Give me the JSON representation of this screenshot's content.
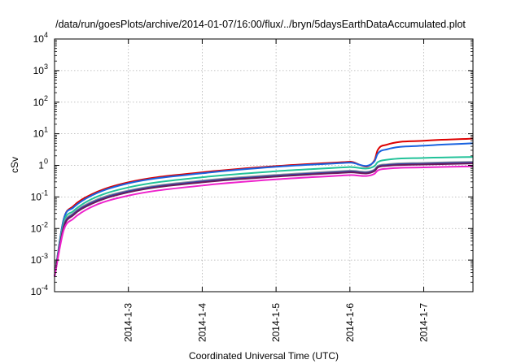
{
  "chart_data": {
    "type": "line",
    "title": "/data/run/goesPlots/archive/2014-01-07/16:00/flux/../bryn/5daysEarthDataAccumulated.plot",
    "xlabel": "Coordinated Universal Time (UTC)",
    "ylabel": "cSv",
    "yscale": "log",
    "ylim": [
      0.0001,
      10000
    ],
    "xlim": [
      "2014-01-02 00:00",
      "2014-01-07 16:00"
    ],
    "grid": true,
    "x_tick_labels": [
      "2014-1-3",
      "2014-1-4",
      "2014-1-5",
      "2014-1-6",
      "2014-1-7"
    ],
    "y_tick_labels": [
      {
        "base": "10",
        "exp": "-4"
      },
      {
        "base": "10",
        "exp": "-3"
      },
      {
        "base": "10",
        "exp": "-2"
      },
      {
        "base": "10",
        "exp": "-1"
      },
      {
        "base": "1",
        "exp": "0"
      },
      {
        "base": "10",
        "exp": "1"
      },
      {
        "base": "10",
        "exp": "2"
      },
      {
        "base": "10",
        "exp": "3"
      },
      {
        "base": "10",
        "exp": "4"
      }
    ],
    "x": [
      "2014-01-02 00:00",
      "2014-01-02 03:00",
      "2014-01-02 06:00",
      "2014-01-02 12:00",
      "2014-01-03 00:00",
      "2014-01-04 00:00",
      "2014-01-05 00:00",
      "2014-01-06 00:00",
      "2014-01-06 08:00",
      "2014-01-06 09:00",
      "2014-01-06 12:00",
      "2014-01-07 00:00",
      "2014-01-07 16:00"
    ],
    "series": [
      {
        "color": "#dd0000",
        "values": [
          0.0003,
          0.02,
          0.05,
          0.12,
          0.29,
          0.6,
          0.95,
          1.3,
          1.45,
          3.0,
          4.5,
          6.0,
          7.0
        ]
      },
      {
        "color": "#1a63e0",
        "values": [
          0.0003,
          0.02,
          0.045,
          0.11,
          0.27,
          0.56,
          0.9,
          1.22,
          1.35,
          2.3,
          3.2,
          4.2,
          5.0
        ]
      },
      {
        "color": "#22c299",
        "values": [
          0.0003,
          0.016,
          0.035,
          0.085,
          0.2,
          0.42,
          0.65,
          0.88,
          0.95,
          1.25,
          1.5,
          1.72,
          1.85
        ]
      },
      {
        "color": "#9a9a9a",
        "values": [
          0.0003,
          0.013,
          0.03,
          0.07,
          0.16,
          0.33,
          0.5,
          0.68,
          0.74,
          0.95,
          1.08,
          1.2,
          1.3
        ]
      },
      {
        "color": "#3344aa",
        "values": [
          0.0003,
          0.012,
          0.028,
          0.065,
          0.15,
          0.31,
          0.47,
          0.64,
          0.7,
          0.9,
          1.02,
          1.13,
          1.22
        ]
      },
      {
        "color": "#6a1a5a",
        "values": [
          0.0003,
          0.011,
          0.026,
          0.06,
          0.14,
          0.29,
          0.44,
          0.6,
          0.66,
          0.85,
          0.96,
          1.06,
          1.15
        ]
      },
      {
        "color": "#ee22cc",
        "values": [
          0.0003,
          0.009,
          0.02,
          0.048,
          0.11,
          0.23,
          0.36,
          0.49,
          0.54,
          0.68,
          0.78,
          0.86,
          0.93
        ]
      }
    ]
  }
}
